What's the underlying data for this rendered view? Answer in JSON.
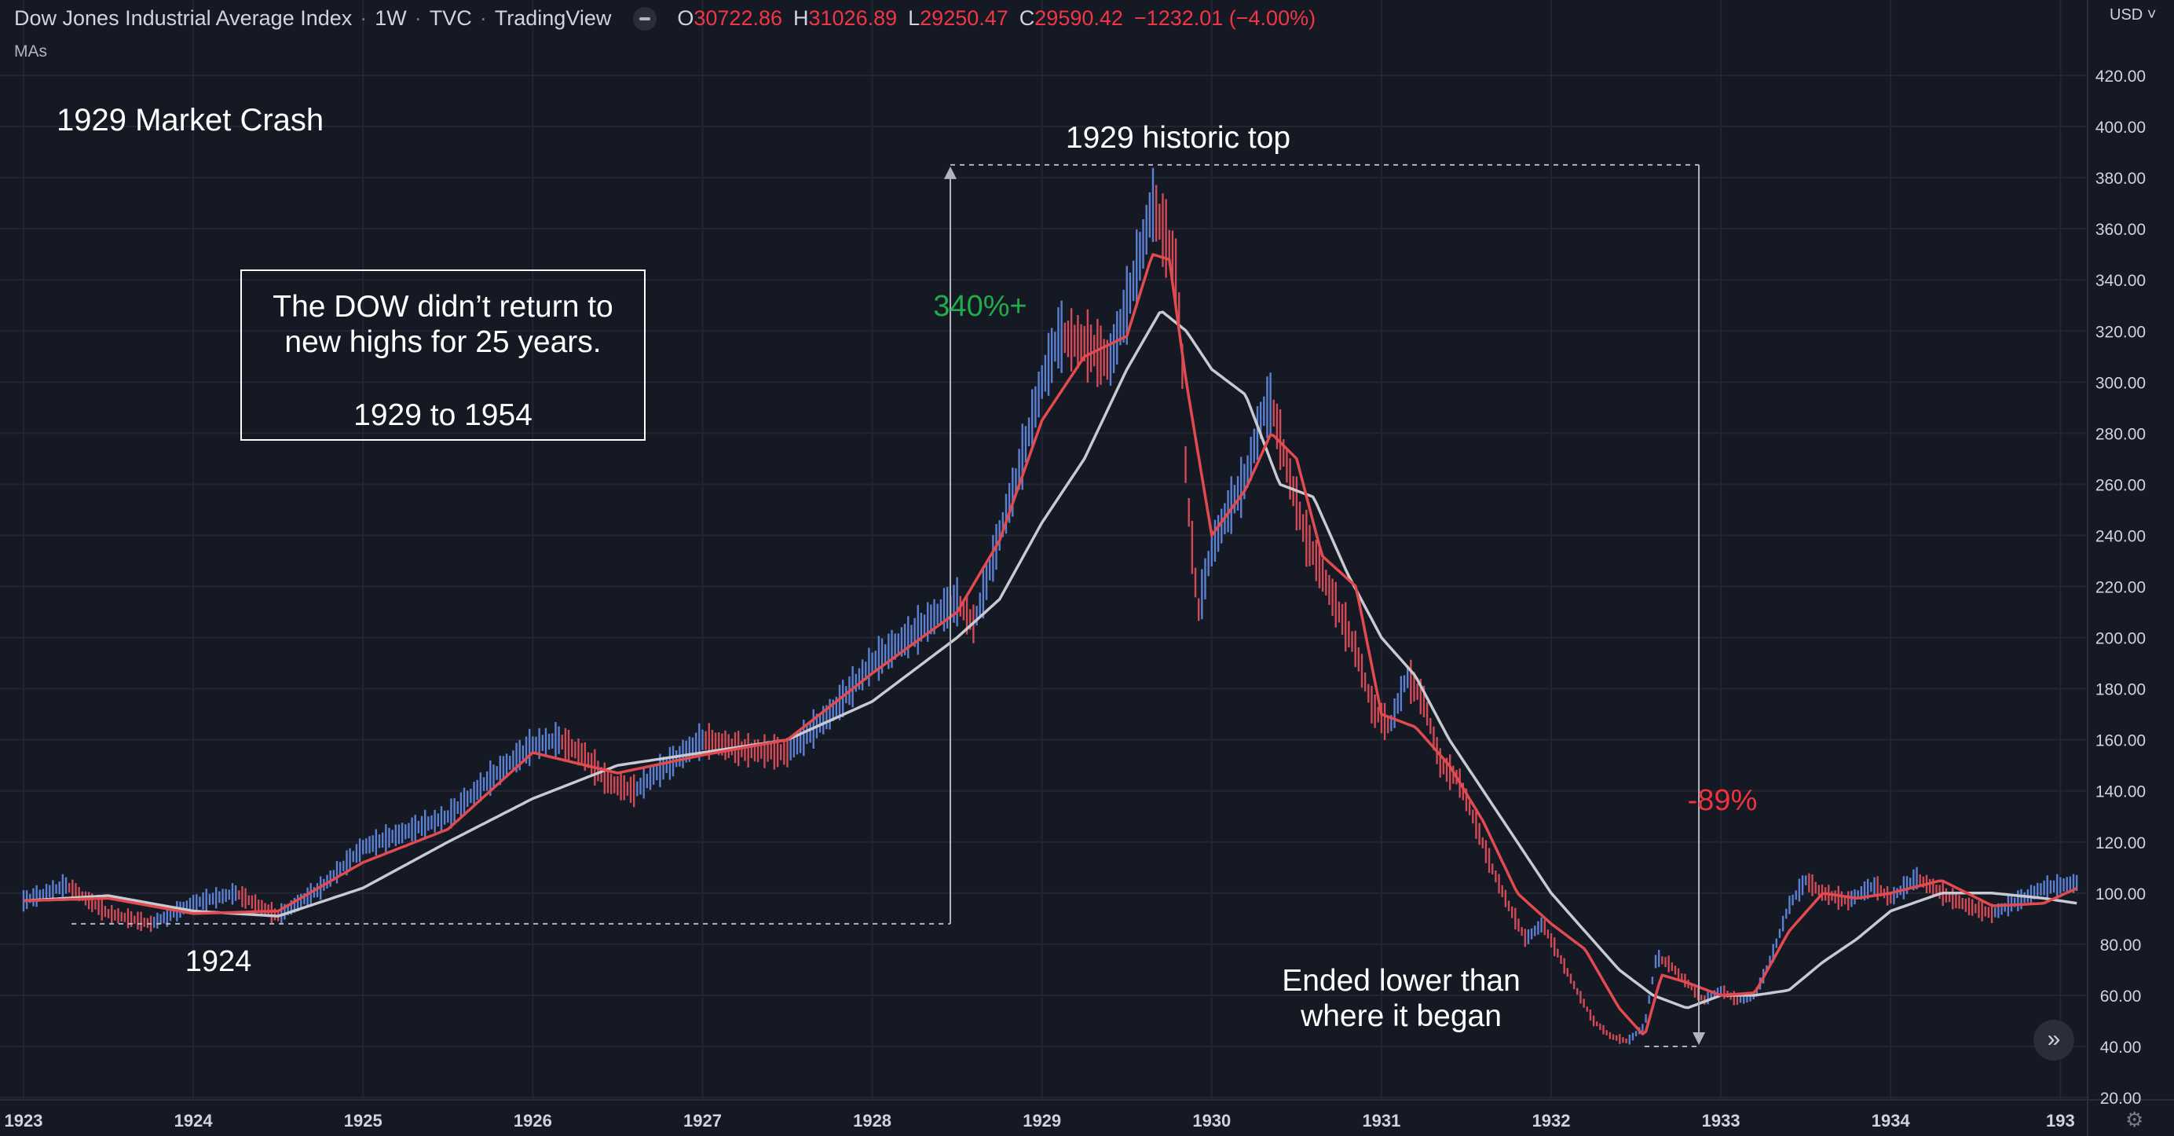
{
  "header": {
    "symbol": "Dow Jones Industrial Average Index",
    "interval": "1W",
    "exchange": "TVC",
    "source": "TradingView",
    "open_label": "O",
    "open": "30722.86",
    "high_label": "H",
    "high": "31026.89",
    "low_label": "L",
    "low": "29250.47",
    "close_label": "C",
    "close": "29590.42",
    "change": "−1232.01 (−4.00%)",
    "indicator": "MAs",
    "currency": "USD"
  },
  "colors": {
    "background": "#151924",
    "grid": "#232632",
    "up_bar": "#5b7fd1",
    "down_bar": "#d14a55",
    "fast_ma": "#e34a4f",
    "slow_ma": "#c8cad2",
    "gain_text": "#22ab4a",
    "loss_text": "#f0323c",
    "annotation_text": "#ffffff",
    "axis_text": "#d1d4dc"
  },
  "icons": {
    "hide": "minus-circle-icon",
    "scroll": "double-chevron-right-icon",
    "settings": "gear-icon",
    "currency": "chevron-down-icon"
  },
  "annotations": {
    "title": "1929 Market Crash",
    "box_line1": "The DOW didn’t return to",
    "box_line2": "new highs for 25 years.",
    "box_line3": "1929 to 1954",
    "top_label": "1929 historic top",
    "gain_label": "340%+",
    "loss_label": "-89%",
    "start_label": "1924",
    "end_line1": "Ended lower than",
    "end_line2": "where it began"
  },
  "chart_data": {
    "type": "line",
    "title": "",
    "xlabel": "",
    "ylabel": "",
    "x_ticks": [
      "1923",
      "1924",
      "1925",
      "1926",
      "1927",
      "1928",
      "1929",
      "1930",
      "1931",
      "1932",
      "1933",
      "1934",
      "193"
    ],
    "y_ticks": [
      "20.00",
      "40.00",
      "60.00",
      "80.00",
      "100.00",
      "120.00",
      "140.00",
      "160.00",
      "180.00",
      "200.00",
      "220.00",
      "240.00",
      "260.00",
      "280.00",
      "300.00",
      "320.00",
      "340.00",
      "360.00",
      "380.00",
      "400.00",
      "420.00"
    ],
    "ylim": [
      20,
      425
    ],
    "xlim": [
      1923.0,
      1935.1
    ],
    "scale": "linear",
    "grid": true,
    "series": [
      {
        "name": "",
        "x": [
          1923.0,
          1923.25,
          1923.5,
          1923.75,
          1924.0,
          1924.25,
          1924.5,
          1924.75,
          1925.0,
          1925.25,
          1925.5,
          1925.75,
          1926.0,
          1926.15,
          1926.3,
          1926.45,
          1926.6,
          1926.75,
          1927.0,
          1927.25,
          1927.5,
          1927.75,
          1928.0,
          1928.25,
          1928.4,
          1928.5,
          1928.6,
          1928.75,
          1928.85,
          1929.0,
          1929.1,
          1929.25,
          1929.4,
          1929.5,
          1929.6,
          1929.65,
          1929.72,
          1929.78,
          1929.82,
          1929.85,
          1929.92,
          1930.0,
          1930.1,
          1930.2,
          1930.3,
          1930.35,
          1930.45,
          1930.55,
          1930.65,
          1930.75,
          1930.85,
          1930.95,
          1931.05,
          1931.15,
          1931.25,
          1931.35,
          1931.45,
          1931.55,
          1931.65,
          1931.75,
          1931.85,
          1931.95,
          1932.05,
          1932.15,
          1932.25,
          1932.35,
          1932.45,
          1932.55,
          1932.62,
          1932.7,
          1932.8,
          1932.9,
          1933.0,
          1933.1,
          1933.2,
          1933.3,
          1933.4,
          1933.5,
          1933.6,
          1933.75,
          1933.9,
          1934.0,
          1934.15,
          1934.3,
          1934.45,
          1934.6,
          1934.75,
          1934.9,
          1935.1
        ],
        "y": [
          97,
          103,
          92,
          88,
          96,
          100,
          91,
          102,
          118,
          124,
          130,
          145,
          158,
          160,
          154,
          143,
          140,
          148,
          160,
          156,
          155,
          170,
          190,
          202,
          210,
          214,
          205,
          240,
          262,
          300,
          318,
          315,
          308,
          330,
          355,
          370,
          358,
          348,
          320,
          260,
          210,
          235,
          250,
          262,
          288,
          292,
          265,
          240,
          225,
          210,
          195,
          172,
          165,
          185,
          175,
          150,
          145,
          128,
          110,
          95,
          82,
          88,
          75,
          62,
          50,
          44,
          42,
          48,
          75,
          72,
          65,
          58,
          62,
          58,
          60,
          75,
          95,
          105,
          100,
          97,
          103,
          98,
          106,
          100,
          95,
          92,
          97,
          102,
          104
        ],
        "values_note_unit": ""
      },
      {
        "name": "",
        "x": [
          1923.0,
          1923.5,
          1924.0,
          1924.5,
          1925.0,
          1925.5,
          1926.0,
          1926.5,
          1927.0,
          1927.5,
          1928.0,
          1928.5,
          1928.75,
          1929.0,
          1929.25,
          1929.5,
          1929.65,
          1929.75,
          1929.85,
          1930.0,
          1930.2,
          1930.35,
          1930.5,
          1930.65,
          1930.85,
          1931.0,
          1931.2,
          1931.4,
          1931.6,
          1931.8,
          1932.0,
          1932.2,
          1932.4,
          1932.55,
          1932.65,
          1932.8,
          1933.0,
          1933.2,
          1933.4,
          1933.6,
          1933.8,
          1934.0,
          1934.3,
          1934.6,
          1934.9,
          1935.1
        ],
        "y": [
          97,
          98,
          92,
          93,
          112,
          125,
          155,
          147,
          154,
          160,
          186,
          210,
          238,
          285,
          310,
          318,
          350,
          348,
          300,
          240,
          258,
          280,
          270,
          232,
          220,
          170,
          165,
          150,
          128,
          100,
          88,
          78,
          55,
          44,
          68,
          65,
          60,
          61,
          85,
          100,
          98,
          100,
          105,
          95,
          96,
          102
        ]
      },
      {
        "name": "",
        "x": [
          1923.0,
          1923.5,
          1924.0,
          1924.5,
          1925.0,
          1925.5,
          1926.0,
          1926.5,
          1927.0,
          1927.5,
          1928.0,
          1928.5,
          1928.75,
          1929.0,
          1929.25,
          1929.5,
          1929.7,
          1929.85,
          1930.0,
          1930.2,
          1930.4,
          1930.6,
          1930.8,
          1931.0,
          1931.2,
          1931.4,
          1931.6,
          1931.8,
          1932.0,
          1932.2,
          1932.4,
          1932.6,
          1932.8,
          1933.0,
          1933.2,
          1933.4,
          1933.6,
          1933.8,
          1934.0,
          1934.3,
          1934.6,
          1934.9,
          1935.1
        ],
        "y": [
          97,
          99,
          93,
          91,
          102,
          120,
          137,
          150,
          155,
          160,
          175,
          200,
          215,
          245,
          270,
          305,
          328,
          320,
          305,
          295,
          260,
          255,
          225,
          200,
          185,
          160,
          140,
          120,
          100,
          85,
          70,
          60,
          55,
          60,
          60,
          62,
          73,
          82,
          93,
          100,
          100,
          98,
          96
        ]
      }
    ]
  }
}
